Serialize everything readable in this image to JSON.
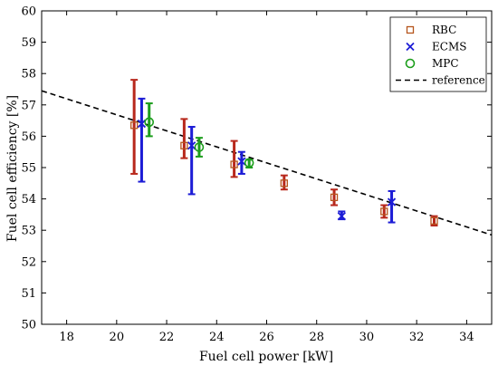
{
  "chart_data": {
    "type": "scatter",
    "title": "",
    "xlabel": "Fuel cell power [kW]",
    "ylabel": "Fuel cell efficiency [%]",
    "xlim": [
      17,
      35
    ],
    "ylim": [
      50,
      60
    ],
    "xticks": [
      18,
      20,
      22,
      24,
      26,
      28,
      30,
      32,
      34
    ],
    "yticks": [
      50,
      51,
      52,
      53,
      54,
      55,
      56,
      57,
      58,
      59,
      60
    ],
    "grid": false,
    "legend_position": "top-right",
    "series": [
      {
        "name": "RBC",
        "marker": "square",
        "color": "#b5541c",
        "errorbar_color": "#b8281c",
        "points": [
          {
            "x": 20.7,
            "y": 56.35,
            "low": 54.8,
            "high": 57.8
          },
          {
            "x": 22.7,
            "y": 55.7,
            "low": 55.3,
            "high": 56.55
          },
          {
            "x": 24.7,
            "y": 55.1,
            "low": 54.7,
            "high": 55.85
          },
          {
            "x": 26.7,
            "y": 54.5,
            "low": 54.3,
            "high": 54.75
          },
          {
            "x": 28.7,
            "y": 54.05,
            "low": 53.8,
            "high": 54.3
          },
          {
            "x": 30.7,
            "y": 53.6,
            "low": 53.4,
            "high": 53.8
          },
          {
            "x": 32.7,
            "y": 53.3,
            "low": 53.15,
            "high": 53.45
          }
        ]
      },
      {
        "name": "ECMS",
        "marker": "x",
        "color": "#1c1cd6",
        "errorbar_color": "#1c1cd6",
        "points": [
          {
            "x": 21.0,
            "y": 56.4,
            "low": 54.55,
            "high": 57.2
          },
          {
            "x": 23.0,
            "y": 55.7,
            "low": 54.15,
            "high": 56.3
          },
          {
            "x": 25.0,
            "y": 55.2,
            "low": 54.8,
            "high": 55.5
          },
          {
            "x": 29.0,
            "y": 53.45,
            "low": 53.35,
            "high": 53.6
          },
          {
            "x": 31.0,
            "y": 53.9,
            "low": 53.25,
            "high": 54.25
          }
        ]
      },
      {
        "name": "MPC",
        "marker": "circle",
        "color": "#1c9e1c",
        "errorbar_color": "#1c9e1c",
        "points": [
          {
            "x": 21.3,
            "y": 56.45,
            "low": 56.0,
            "high": 57.05
          },
          {
            "x": 23.3,
            "y": 55.65,
            "low": 55.35,
            "high": 55.95
          },
          {
            "x": 25.3,
            "y": 55.15,
            "low": 55.0,
            "high": 55.25
          }
        ]
      },
      {
        "name": "reference",
        "style": "dashed",
        "color": "#000000",
        "x": [
          17,
          35
        ],
        "y": [
          57.45,
          52.85
        ]
      }
    ]
  }
}
